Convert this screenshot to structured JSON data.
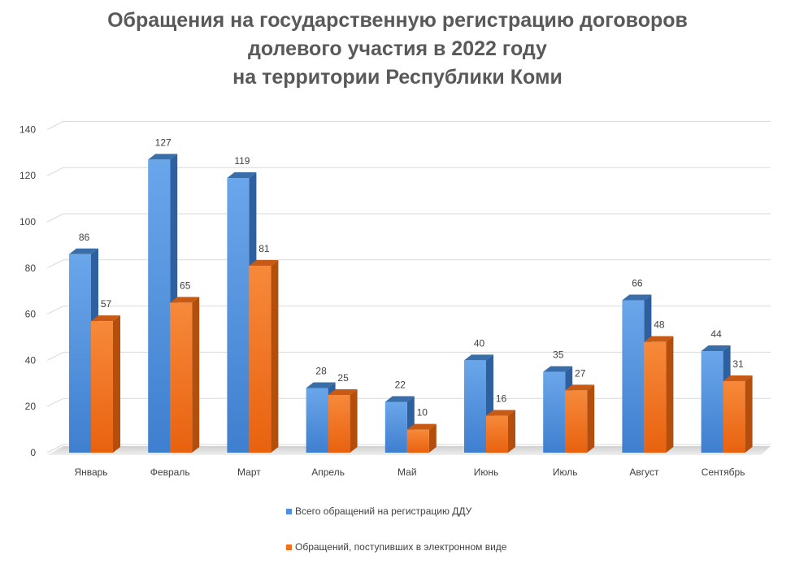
{
  "chart_data": {
    "type": "bar",
    "title_lines": [
      "Обращения на государственную регистрацию договоров",
      "долевого участия в 2022 году",
      "на территории Республики Коми"
    ],
    "categories": [
      "Январь",
      "Февраль",
      "Март",
      "Апрель",
      "Май",
      "Июнь",
      "Июль",
      "Август",
      "Сентябрь"
    ],
    "series": [
      {
        "name": "Всего обращений на регистрацию ДДУ",
        "color": "#4f8fdc",
        "values": [
          86,
          127,
          119,
          28,
          22,
          40,
          35,
          66,
          44
        ]
      },
      {
        "name": "Обращений, поступивших в электронном виде",
        "color": "#f0701e",
        "values": [
          57,
          65,
          81,
          25,
          10,
          16,
          27,
          48,
          31
        ]
      }
    ],
    "ylim": [
      0,
      140
    ],
    "yticks": [
      0,
      20,
      40,
      60,
      80,
      100,
      120,
      140
    ],
    "grid": true,
    "legend_position": "bottom",
    "style": "3d-column"
  }
}
